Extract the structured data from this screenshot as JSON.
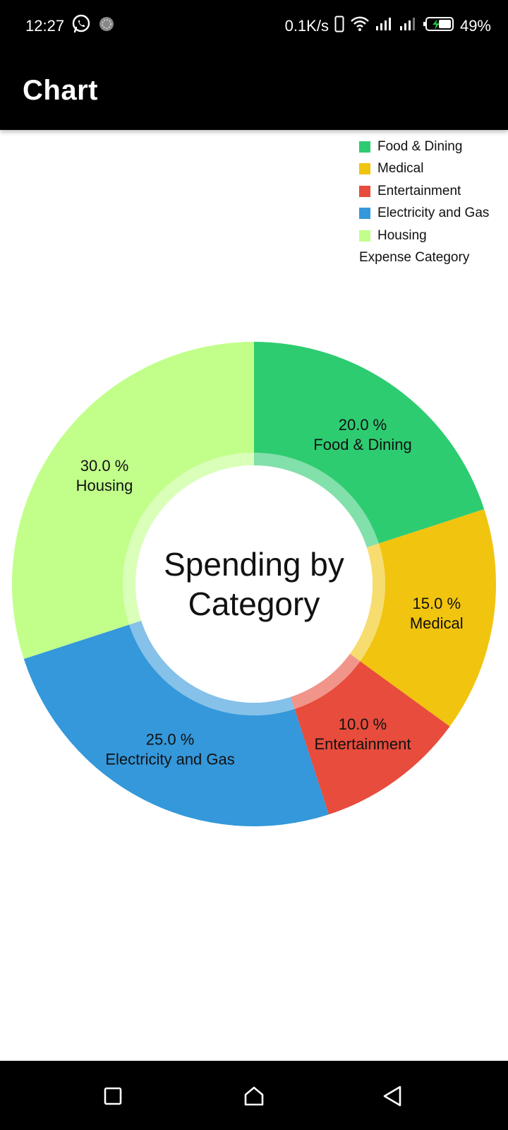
{
  "status_bar": {
    "time": "12:27",
    "net_speed": "0.1K/s",
    "battery": "49%",
    "icons": [
      "whatsapp-icon",
      "loading-icon",
      "phone-vibrate-icon",
      "wifi-icon",
      "signal-icon",
      "signal-icon",
      "battery-charging-icon"
    ]
  },
  "app_bar": {
    "title": "Chart"
  },
  "legend": {
    "items": [
      {
        "label": "Food & Dining",
        "color": "#2ECC71"
      },
      {
        "label": "Medical",
        "color": "#F1C40F"
      },
      {
        "label": "Entertainment",
        "color": "#E74C3C"
      },
      {
        "label": "Electricity and Gas",
        "color": "#3498DB"
      },
      {
        "label": "Housing",
        "color": "#C1FF8A"
      }
    ],
    "title": "Expense Category"
  },
  "chart_data": {
    "type": "pie",
    "categories": [
      "Food & Dining",
      "Medical",
      "Entertainment",
      "Electricity and Gas",
      "Housing"
    ],
    "values": [
      20.0,
      15.0,
      10.0,
      25.0,
      30.0
    ],
    "value_labels": [
      "20.0 %",
      "15.0 %",
      "10.0 %",
      "25.0 %",
      "30.0 %"
    ],
    "colors": [
      "#2ECC71",
      "#F1C40F",
      "#E74C3C",
      "#3498DB",
      "#C1FF8A"
    ],
    "title": "Spending by Category",
    "title_lines": [
      "Spending by",
      "Category"
    ],
    "legend_title": "Expense Category",
    "legend_position": "top-right",
    "donut": true
  },
  "nav_bar": {
    "icons": [
      "recent-apps-icon",
      "home-icon",
      "back-icon"
    ]
  }
}
